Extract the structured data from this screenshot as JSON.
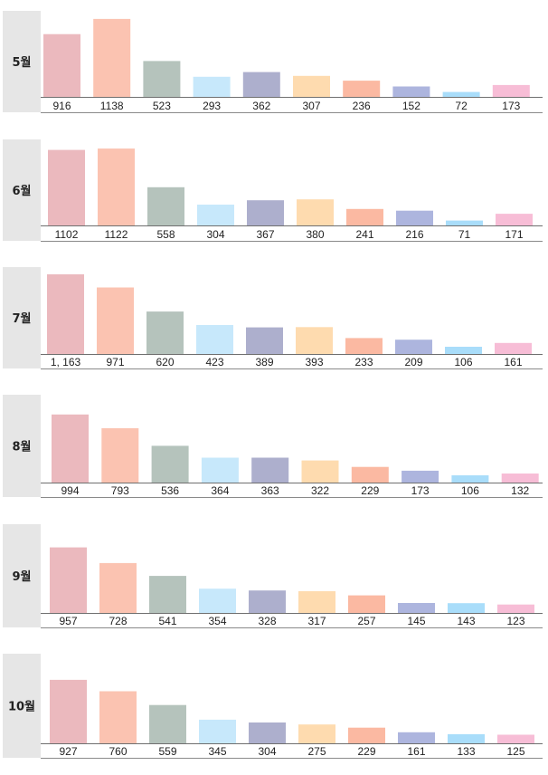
{
  "colors": [
    "#EBB9BE",
    "#FBC3B1",
    "#B5C3BC",
    "#C7E8FB",
    "#ADAFCD",
    "#FEDBAF",
    "#FBB9A2",
    "#ADB5DE",
    "#A9DDFA",
    "#F7BDD6"
  ],
  "chart_data": [
    {
      "type": "bar",
      "title": "5월",
      "value_labels": [
        "916",
        "1138",
        "523",
        "293",
        "362",
        "307",
        "236",
        "152",
        "72",
        "173"
      ],
      "values": [
        916,
        1138,
        523,
        293,
        362,
        307,
        236,
        152,
        72,
        173
      ]
    },
    {
      "type": "bar",
      "title": "6월",
      "value_labels": [
        "1102",
        "1122",
        "558",
        "304",
        "367",
        "380",
        "241",
        "216",
        "71",
        "171"
      ],
      "values": [
        1102,
        1122,
        558,
        304,
        367,
        380,
        241,
        216,
        71,
        171
      ]
    },
    {
      "type": "bar",
      "title": "7월",
      "value_labels": [
        "1, 163",
        "971",
        "620",
        "423",
        "389",
        "393",
        "233",
        "209",
        "106",
        "161"
      ],
      "values": [
        1163,
        971,
        620,
        423,
        389,
        393,
        233,
        209,
        106,
        161
      ]
    },
    {
      "type": "bar",
      "title": "8월",
      "value_labels": [
        "994",
        "793",
        "536",
        "364",
        "363",
        "322",
        "229",
        "173",
        "106",
        "132"
      ],
      "values": [
        994,
        793,
        536,
        364,
        363,
        322,
        229,
        173,
        106,
        132
      ]
    },
    {
      "type": "bar",
      "title": "9월",
      "value_labels": [
        "957",
        "728",
        "541",
        "354",
        "328",
        "317",
        "257",
        "145",
        "143",
        "123"
      ],
      "values": [
        957,
        728,
        541,
        354,
        328,
        317,
        257,
        145,
        143,
        123
      ]
    },
    {
      "type": "bar",
      "title": "10월",
      "value_labels": [
        "927",
        "760",
        "559",
        "345",
        "304",
        "275",
        "229",
        "161",
        "133",
        "125"
      ],
      "values": [
        927,
        760,
        559,
        345,
        304,
        275,
        229,
        161,
        133,
        125
      ]
    }
  ]
}
